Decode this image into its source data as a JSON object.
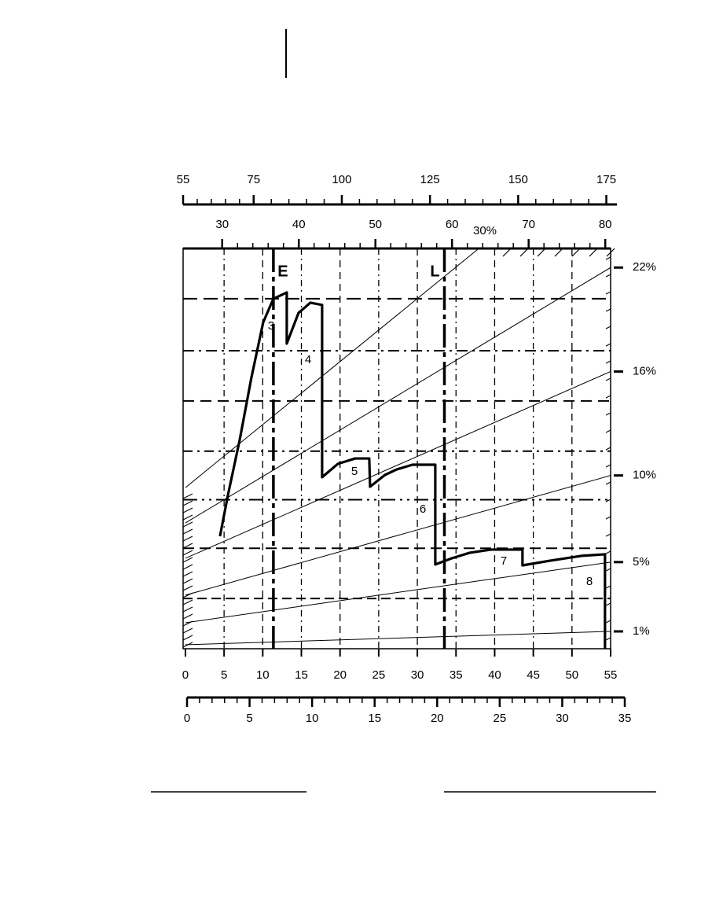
{
  "chart_data": {
    "type": "line",
    "xlim": [
      -0.3,
      55
    ],
    "xticks": [
      0,
      5,
      10,
      15,
      20,
      25,
      30,
      35,
      40,
      45,
      50,
      55
    ],
    "ylim": [
      0,
      23.1
    ],
    "yticks": [
      {
        "value": 1,
        "label": "1%"
      },
      {
        "value": 5,
        "label": "5%"
      },
      {
        "value": 10,
        "label": "10%"
      },
      {
        "value": 16,
        "label": "16%"
      },
      {
        "value": 22,
        "label": "22%"
      }
    ],
    "top_axes": [
      {
        "xlim": [
          55,
          178
        ],
        "xticks": [
          55,
          75,
          100,
          125,
          150,
          175
        ]
      },
      {
        "xlim": [
          24.9,
          80.7
        ],
        "xticks": [
          30,
          40,
          50,
          60,
          70,
          80
        ]
      }
    ],
    "bottom_axis2": {
      "xlim": [
        0,
        35
      ],
      "xticks": [
        0,
        5,
        10,
        15,
        20,
        25,
        30,
        35
      ]
    },
    "reference_y": [
      20.2,
      17.2,
      14.3,
      11.4,
      8.6,
      5.8,
      2.9
    ],
    "gradient_lines": [
      {
        "x": [
          0,
          55
        ],
        "values": [
          9.3,
          29.3
        ]
      },
      {
        "x": [
          0,
          55
        ],
        "values": [
          7.26,
          22
        ]
      },
      {
        "x": [
          0,
          55
        ],
        "values": [
          5.22,
          16
        ]
      },
      {
        "x": [
          0,
          55
        ],
        "values": [
          3.09,
          10
        ]
      },
      {
        "x": [
          0,
          55
        ],
        "values": [
          1.5,
          5
        ]
      },
      {
        "x": [
          0,
          55
        ],
        "values": [
          0.23,
          1
        ]
      }
    ],
    "gradient_label": "30%",
    "markers": [
      {
        "label": "E",
        "x": 11.38
      },
      {
        "label": "L",
        "x": 33.5
      }
    ],
    "series": [
      {
        "color": "#000000",
        "x": [
          4.47,
          5.49,
          7.01,
          8.54,
          10.06,
          11.38,
          13.11,
          13.11,
          14.63,
          16.16,
          17.68,
          17.68,
          19.72,
          21.95,
          23.78,
          23.88,
          25.81,
          27.34,
          29.37,
          32.32,
          32.32,
          34.45,
          36.79,
          39.53,
          43.6,
          43.6,
          47.15,
          51.22,
          54.27,
          54.27
        ],
        "values": [
          6.49,
          8.85,
          12.03,
          15.66,
          18.84,
          20.2,
          20.56,
          17.61,
          19.38,
          19.97,
          19.84,
          9.9,
          10.67,
          10.98,
          10.98,
          9.35,
          10.03,
          10.35,
          10.62,
          10.62,
          4.86,
          5.22,
          5.54,
          5.72,
          5.72,
          4.81,
          5.08,
          5.36,
          5.45,
          0
        ]
      }
    ],
    "annotations": [
      "3",
      "4",
      "5",
      "6",
      "7",
      "8"
    ]
  }
}
